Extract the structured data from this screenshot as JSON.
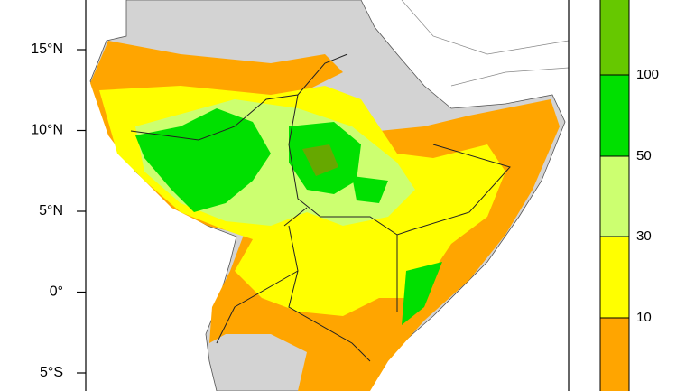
{
  "map": {
    "latitude_labels": [
      "15°N",
      "10°N",
      "5°N",
      "0°",
      "5°S"
    ],
    "colorbar": {
      "labels": [
        "100",
        "50",
        "30",
        "10"
      ],
      "colors": [
        "#66c800",
        "#00e000",
        "#ccff70",
        "#ffff00",
        "#ffa500"
      ]
    }
  }
}
